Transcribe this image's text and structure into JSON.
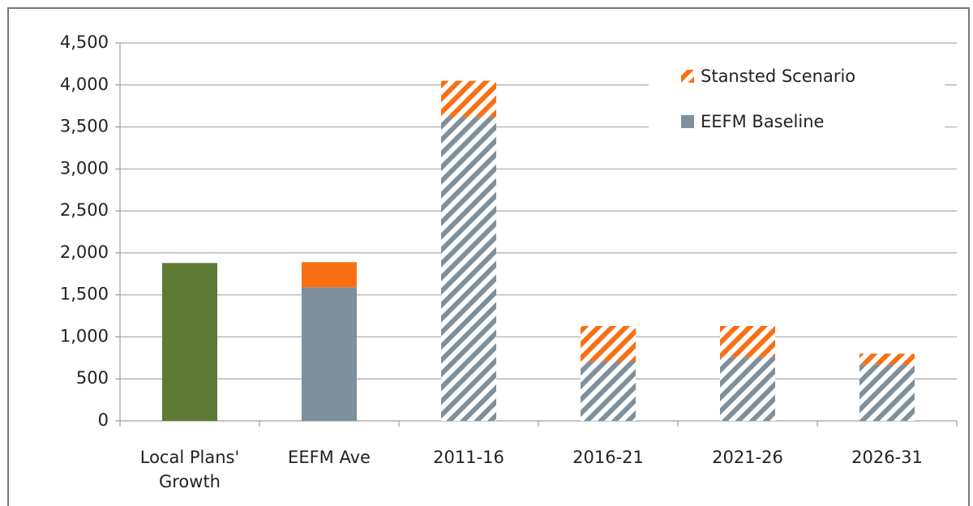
{
  "chart_data": {
    "type": "stacked_bar",
    "categories": [
      "Local Plans' Growth",
      "EEFM Ave",
      "2011-16",
      "2016-21",
      "2021-26",
      "2026-31"
    ],
    "series": [
      {
        "name": "EEFM Baseline",
        "color": "#7f8f9c",
        "values": [
          1880,
          1590,
          3620,
          710,
          760,
          670
        ],
        "point_colors": [
          "#5e7a35",
          "#7f8f9c",
          "#7f8f9c",
          "#7f8f9c",
          "#7f8f9c",
          "#7f8f9c"
        ],
        "hatched": [
          false,
          false,
          true,
          true,
          true,
          true
        ]
      },
      {
        "name": "Stansted Scenario",
        "color": "#f96f14",
        "values": [
          null,
          300,
          430,
          420,
          370,
          130
        ],
        "hatched": [
          false,
          false,
          true,
          true,
          true,
          true
        ],
        "legend_hatched": true
      }
    ],
    "ylim": [
      0,
      4500
    ],
    "yticks": [
      0,
      {
        "value": 500,
        "label": "500"
      },
      {
        "value": 1000,
        "label": "1,000"
      },
      {
        "value": 1500,
        "label": "1,500"
      },
      {
        "value": 2000,
        "label": "2,000"
      },
      {
        "value": 2500,
        "label": "2,500"
      },
      {
        "value": 3000,
        "label": "3,000"
      },
      {
        "value": 3500,
        "label": "3,500"
      },
      {
        "value": 4000,
        "label": "4,000"
      },
      {
        "value": 4500,
        "label": "4,500"
      }
    ],
    "grid": true,
    "legend": "upper right"
  }
}
